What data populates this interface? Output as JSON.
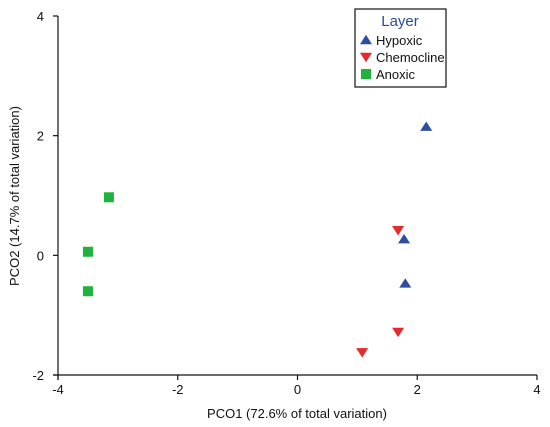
{
  "chart_data": {
    "type": "scatter",
    "xlabel": "PCO1 (72.6% of total variation)",
    "ylabel": "PCO2 (14.7% of total variation)",
    "xlim": [
      -4,
      4
    ],
    "ylim": [
      -2,
      4
    ],
    "xticks": [
      -4,
      -2,
      0,
      2,
      4
    ],
    "yticks": [
      -2,
      0,
      2,
      4
    ],
    "xtick_labels": [
      "-4",
      "-2",
      "0",
      "2",
      "4"
    ],
    "ytick_labels": [
      "-2",
      "0",
      "2",
      "4"
    ],
    "grid": false,
    "legend": {
      "title": "Layer",
      "placement": "top-right"
    },
    "series": [
      {
        "name": "Hypoxic",
        "marker": "triangle-up",
        "color": "#2f4d9e",
        "points": [
          [
            2.15,
            2.15
          ],
          [
            1.78,
            0.27
          ],
          [
            1.8,
            -0.47
          ]
        ]
      },
      {
        "name": "Chemocline",
        "marker": "triangle-down",
        "color": "#e8282b",
        "points": [
          [
            1.68,
            0.42
          ],
          [
            1.68,
            -1.28
          ],
          [
            1.08,
            -1.62
          ]
        ]
      },
      {
        "name": "Anoxic",
        "marker": "square",
        "color": "#1fb23c",
        "points": [
          [
            -3.15,
            0.97
          ],
          [
            -3.5,
            0.06
          ],
          [
            -3.5,
            -0.6
          ]
        ]
      }
    ]
  }
}
